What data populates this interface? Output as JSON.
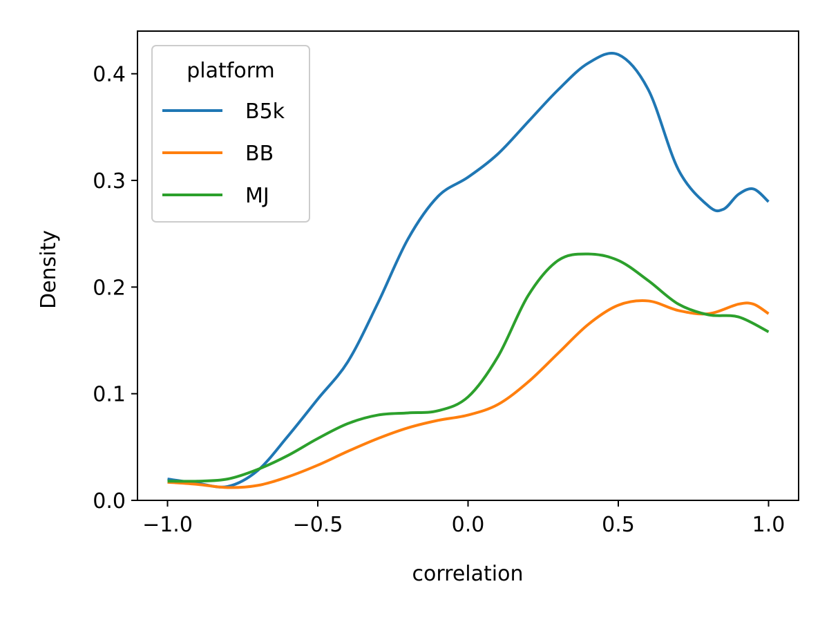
{
  "chart_data": {
    "type": "line",
    "title": "",
    "xlabel": "correlation",
    "ylabel": "Density",
    "xlim": [
      -1.1,
      1.1
    ],
    "ylim": [
      0.0,
      0.44
    ],
    "xticks": [
      -1.0,
      -0.5,
      0.0,
      0.5,
      1.0
    ],
    "xtick_labels": [
      "−1.0",
      "−0.5",
      "0.0",
      "0.5",
      "1.0"
    ],
    "yticks": [
      0.0,
      0.1,
      0.2,
      0.3,
      0.4
    ],
    "ytick_labels": [
      "0.0",
      "0.1",
      "0.2",
      "0.3",
      "0.4"
    ],
    "grid": false,
    "legend": {
      "title": "platform",
      "placement": "top-left"
    },
    "series": [
      {
        "name": "B5k",
        "color": "#1f77b4",
        "x": [
          -1.0,
          -0.9,
          -0.8,
          -0.7,
          -0.6,
          -0.5,
          -0.4,
          -0.3,
          -0.2,
          -0.1,
          0.0,
          0.1,
          0.2,
          0.3,
          0.4,
          0.5,
          0.6,
          0.7,
          0.8,
          0.85,
          0.9,
          0.95,
          1.0
        ],
        "y": [
          0.02,
          0.016,
          0.013,
          0.028,
          0.06,
          0.095,
          0.13,
          0.185,
          0.245,
          0.285,
          0.303,
          0.325,
          0.355,
          0.385,
          0.41,
          0.418,
          0.385,
          0.31,
          0.276,
          0.273,
          0.287,
          0.292,
          0.28
        ]
      },
      {
        "name": "BB",
        "color": "#ff7f0e",
        "x": [
          -1.0,
          -0.9,
          -0.8,
          -0.7,
          -0.6,
          -0.5,
          -0.4,
          -0.3,
          -0.2,
          -0.1,
          0.0,
          0.1,
          0.2,
          0.3,
          0.4,
          0.5,
          0.6,
          0.7,
          0.8,
          0.9,
          0.95,
          1.0
        ],
        "y": [
          0.017,
          0.015,
          0.012,
          0.014,
          0.022,
          0.033,
          0.046,
          0.058,
          0.068,
          0.075,
          0.08,
          0.09,
          0.111,
          0.138,
          0.165,
          0.183,
          0.187,
          0.178,
          0.175,
          0.184,
          0.184,
          0.175
        ]
      },
      {
        "name": "MJ",
        "color": "#2ca02c",
        "x": [
          -1.0,
          -0.9,
          -0.8,
          -0.7,
          -0.6,
          -0.5,
          -0.4,
          -0.3,
          -0.2,
          -0.1,
          0.0,
          0.1,
          0.2,
          0.3,
          0.4,
          0.5,
          0.6,
          0.7,
          0.8,
          0.9,
          1.0
        ],
        "y": [
          0.018,
          0.018,
          0.02,
          0.029,
          0.042,
          0.058,
          0.072,
          0.08,
          0.082,
          0.084,
          0.097,
          0.135,
          0.192,
          0.225,
          0.231,
          0.225,
          0.206,
          0.184,
          0.174,
          0.172,
          0.158
        ]
      }
    ]
  }
}
